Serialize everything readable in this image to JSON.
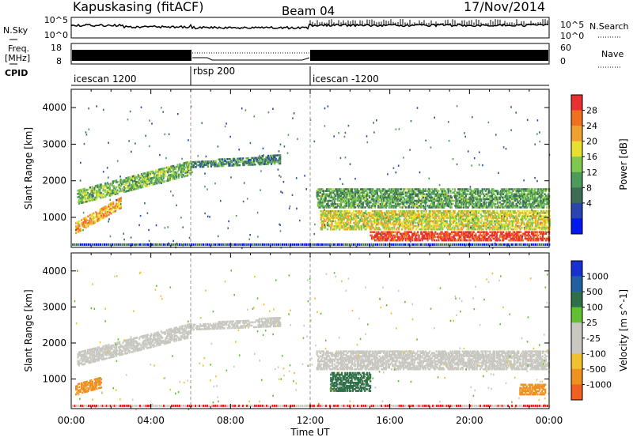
{
  "header": {
    "station": "Kapuskasing (fitACF)",
    "beam": "Beam 04",
    "date": "17/Nov/2014"
  },
  "noise_panel": {
    "left_label": "N.Sky",
    "right_label": "N.Search",
    "left_ticks": [
      "10^5",
      "10^0"
    ],
    "right_ticks": [
      "10^5",
      "10^0"
    ]
  },
  "freq_panel": {
    "left_label_1": "Freq.",
    "left_label_2": "[MHz]",
    "right_label": "Nave",
    "left_ticks": [
      "18",
      "8"
    ],
    "right_ticks": [
      "60",
      "0"
    ]
  },
  "cpid": {
    "label": "CPID",
    "segments": [
      {
        "name": "icescan 1200",
        "start": 0,
        "end": 6
      },
      {
        "name": "rbsp 200",
        "start": 6,
        "end": 12
      },
      {
        "name": "icescan -1200",
        "start": 12,
        "end": 24
      }
    ]
  },
  "colors": {
    "power": [
      "#0018f0",
      "#2a45b0",
      "#3d6e55",
      "#4e9a5a",
      "#7ec850",
      "#e8e030",
      "#f0a030",
      "#f07020",
      "#e83030"
    ],
    "velocity": [
      "#1830d0",
      "#2060a0",
      "#307048",
      "#60c030",
      "#c8c8c0",
      "#c8c8c0",
      "#f0c030",
      "#f09020",
      "#f06020",
      "#e82020"
    ]
  },
  "chart_data": [
    {
      "type": "heatmap",
      "title": "Power",
      "ylabel": "Slant Range [km]",
      "xlabel": "Time UT",
      "xlim": [
        0,
        24
      ],
      "ylim": [
        180,
        4500
      ],
      "x_ticks": [
        "00:00",
        "04:00",
        "08:00",
        "12:00",
        "16:00",
        "20:00",
        "00:00"
      ],
      "y_ticks": [
        1000,
        2000,
        3000,
        4000
      ],
      "colorbar": {
        "label": "Power [dB]",
        "ticks": [
          "28",
          "24",
          "20",
          "16",
          "12",
          "8",
          "4"
        ],
        "range": [
          0,
          30
        ]
      },
      "bands": [
        {
          "x": [
            0.3,
            6.0
          ],
          "y_start": [
            1400,
            2200
          ],
          "y_end": [
            1800,
            2600
          ],
          "level": 14
        },
        {
          "x": [
            6.0,
            10.5
          ],
          "y_start": [
            2400,
            2500
          ],
          "y_end": [
            2550,
            2750
          ],
          "level": 10
        },
        {
          "x": [
            0.2,
            2.5
          ],
          "y_start": [
            600,
            1300
          ],
          "y_end": [
            900,
            1600
          ],
          "level": 22
        },
        {
          "x": [
            12.3,
            24
          ],
          "y_start": [
            1300,
            1300
          ],
          "y_end": [
            1800,
            1800
          ],
          "level": 12
        },
        {
          "x": [
            12.5,
            24
          ],
          "y_start": [
            700,
            700
          ],
          "y_end": [
            1200,
            1200
          ],
          "level": 18
        },
        {
          "x": [
            15.0,
            24
          ],
          "y_start": [
            400,
            400
          ],
          "y_end": [
            650,
            650
          ],
          "level": 28
        }
      ]
    },
    {
      "type": "heatmap",
      "title": "Velocity",
      "ylabel": "Slant Range [km]",
      "xlabel": "Time UT",
      "xlim": [
        0,
        24
      ],
      "ylim": [
        180,
        4500
      ],
      "x_ticks": [
        "00:00",
        "04:00",
        "08:00",
        "12:00",
        "16:00",
        "20:00",
        "00:00"
      ],
      "y_ticks": [
        1000,
        2000,
        3000,
        4000
      ],
      "colorbar": {
        "label": "Velocity [m s^-1]",
        "ticks": [
          "1000",
          "500",
          "100",
          "25",
          "-25",
          "-100",
          "-500",
          "-1000"
        ],
        "range": [
          -1000,
          1000
        ]
      },
      "bands": [
        {
          "x": [
            0.3,
            6.0
          ],
          "y_start": [
            1400,
            2200
          ],
          "y_end": [
            1800,
            2600
          ],
          "level": 0
        },
        {
          "x": [
            6.0,
            10.5
          ],
          "y_start": [
            2400,
            2500
          ],
          "y_end": [
            2550,
            2750
          ],
          "level": 0
        },
        {
          "x": [
            0.2,
            1.5
          ],
          "y_start": [
            600,
            800
          ],
          "y_end": [
            900,
            1100
          ],
          "level": -300
        },
        {
          "x": [
            12.3,
            24
          ],
          "y_start": [
            1300,
            1300
          ],
          "y_end": [
            1800,
            1800
          ],
          "level": 0
        },
        {
          "x": [
            13.0,
            15.0
          ],
          "y_start": [
            700,
            700
          ],
          "y_end": [
            1200,
            1200
          ],
          "level": 120
        },
        {
          "x": [
            22.5,
            23.8
          ],
          "y_start": [
            600,
            600
          ],
          "y_end": [
            900,
            900
          ],
          "level": -300
        }
      ]
    }
  ]
}
